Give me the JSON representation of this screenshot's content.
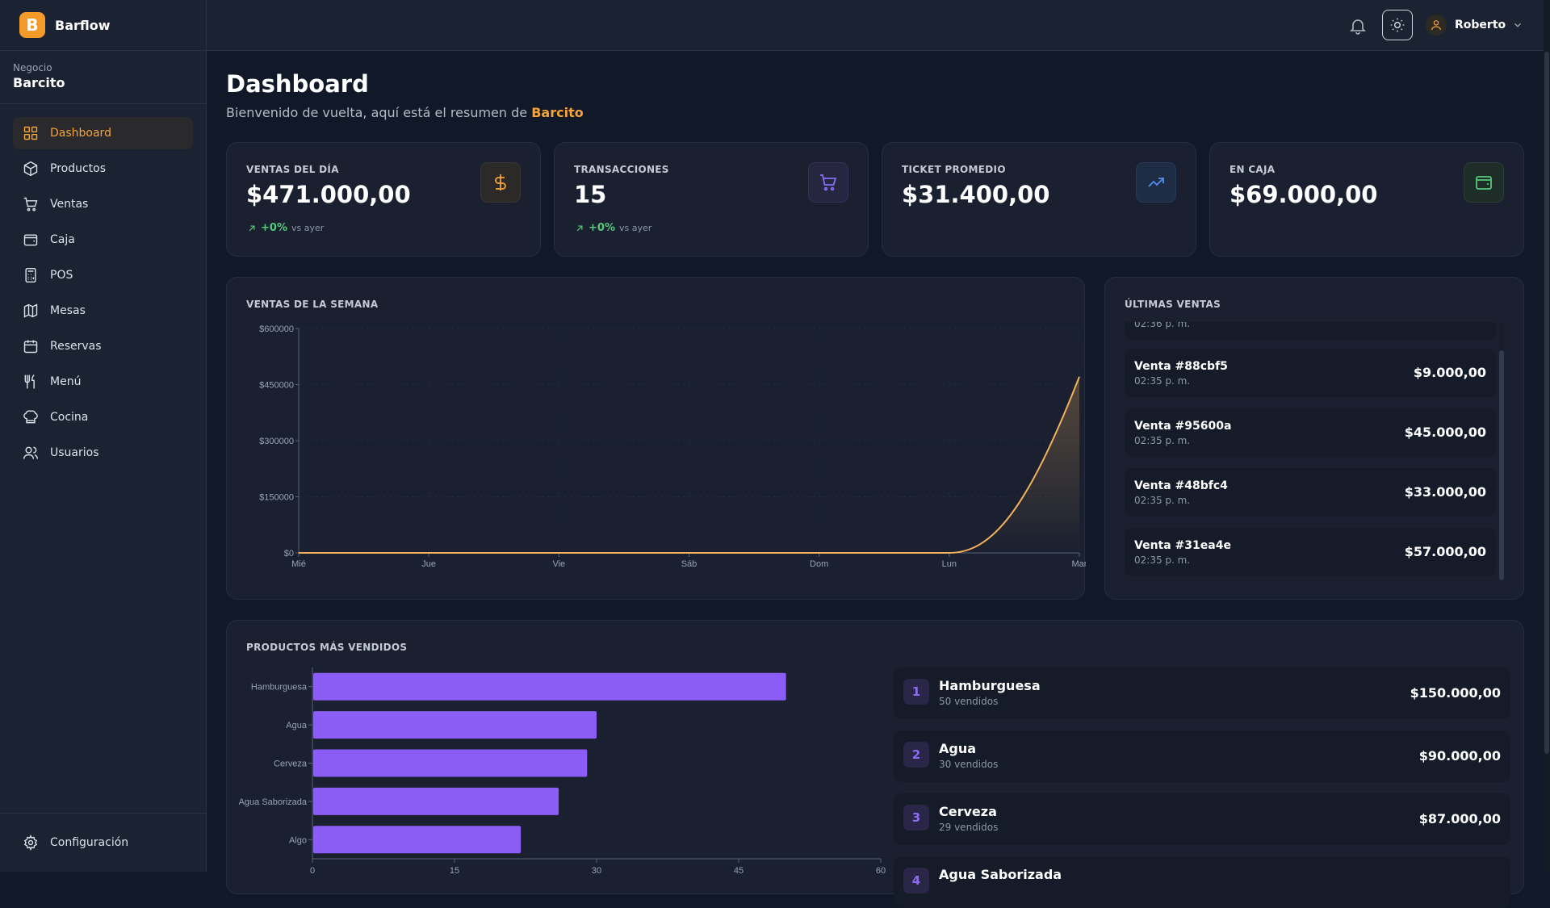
{
  "app": {
    "name": "Barflow",
    "logo_letter": "B"
  },
  "business": {
    "label": "Negocio",
    "name": "Barcito"
  },
  "nav": {
    "items": [
      {
        "label": "Dashboard",
        "icon": "dashboard-icon",
        "active": true
      },
      {
        "label": "Productos",
        "icon": "box-icon"
      },
      {
        "label": "Ventas",
        "icon": "cart-icon"
      },
      {
        "label": "Caja",
        "icon": "wallet-icon"
      },
      {
        "label": "POS",
        "icon": "calculator-icon"
      },
      {
        "label": "Mesas",
        "icon": "map-icon"
      },
      {
        "label": "Reservas",
        "icon": "calendar-icon"
      },
      {
        "label": "Menú",
        "icon": "utensils-icon"
      },
      {
        "label": "Cocina",
        "icon": "chef-hat-icon"
      },
      {
        "label": "Usuarios",
        "icon": "users-icon"
      }
    ],
    "settings_label": "Configuración"
  },
  "topbar": {
    "user_name": "Roberto"
  },
  "page": {
    "title": "Dashboard",
    "subtitle_prefix": "Bienvenido de vuelta, aquí está el resumen de ",
    "subtitle_business": "Barcito"
  },
  "stats": [
    {
      "label": "VENTAS DEL DÍA",
      "value": "$471.000,00",
      "delta": "+0%",
      "delta_note": "vs ayer",
      "icon": "dollar-icon"
    },
    {
      "label": "TRANSACCIONES",
      "value": "15",
      "delta": "+0%",
      "delta_note": "vs ayer",
      "icon": "cart-icon"
    },
    {
      "label": "TICKET PROMEDIO",
      "value": "$31.400,00",
      "icon": "trending-up-icon"
    },
    {
      "label": "EN CAJA",
      "value": "$69.000,00",
      "icon": "wallet-icon"
    }
  ],
  "weekly": {
    "title": "VENTAS DE LA SEMANA"
  },
  "recent": {
    "title": "ÚLTIMAS VENTAS",
    "partial_time": "02:36 p. m.",
    "items": [
      {
        "name": "Venta #88cbf5",
        "time": "02:35 p. m.",
        "amount": "$9.000,00"
      },
      {
        "name": "Venta #95600a",
        "time": "02:35 p. m.",
        "amount": "$45.000,00"
      },
      {
        "name": "Venta #48bfc4",
        "time": "02:35 p. m.",
        "amount": "$33.000,00"
      },
      {
        "name": "Venta #31ea4e",
        "time": "02:35 p. m.",
        "amount": "$57.000,00"
      }
    ]
  },
  "top_products": {
    "title": "PRODUCTOS MÁS VENDIDOS",
    "items": [
      {
        "rank": "1",
        "name": "Hamburguesa",
        "sold": "50 vendidos",
        "amount": "$150.000,00"
      },
      {
        "rank": "2",
        "name": "Agua",
        "sold": "30 vendidos",
        "amount": "$90.000,00"
      },
      {
        "rank": "3",
        "name": "Cerveza",
        "sold": "29 vendidos",
        "amount": "$87.000,00"
      },
      {
        "rank": "4",
        "name": "Agua Saborizada",
        "sold": "",
        "amount": ""
      }
    ]
  },
  "colors": {
    "accent": "#f5a33a",
    "line": "#f3b15a",
    "bar": "#8b5cf6",
    "positive": "#56c97a"
  },
  "chart_data": [
    {
      "type": "area",
      "title": "VENTAS DE LA SEMANA",
      "x": [
        "Mié",
        "Jue",
        "Vie",
        "Sáb",
        "Dom",
        "Lun",
        "Mar"
      ],
      "values": [
        0,
        0,
        0,
        0,
        0,
        0,
        471000
      ],
      "ylim": [
        0,
        600000
      ],
      "yticks": [
        "$0",
        "$150000",
        "$300000",
        "$450000",
        "$600000"
      ],
      "yticks_values": [
        0,
        150000,
        300000,
        450000,
        600000
      ],
      "grid": true
    },
    {
      "type": "bar",
      "orientation": "horizontal",
      "title": "PRODUCTOS MÁS VENDIDOS",
      "categories": [
        "Hamburguesa",
        "Agua",
        "Cerveza",
        "Agua Saborizada",
        "Algo"
      ],
      "values": [
        50,
        30,
        29,
        26,
        22
      ],
      "xlim": [
        0,
        60
      ],
      "xticks": [
        "0",
        "15",
        "30",
        "45",
        "60"
      ],
      "xticks_values": [
        0,
        15,
        30,
        45,
        60
      ]
    }
  ]
}
